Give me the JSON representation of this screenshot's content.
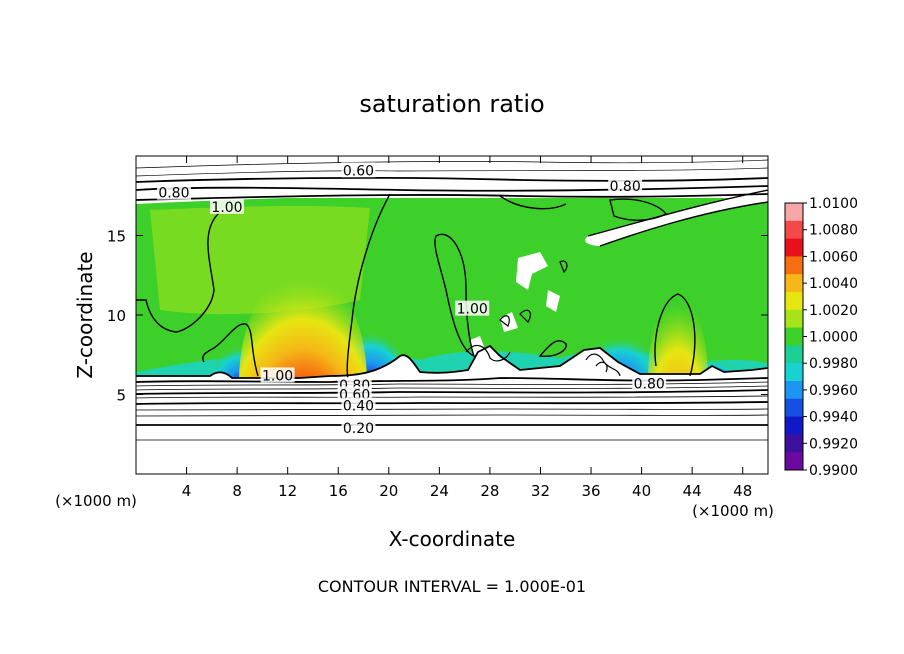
{
  "chart_data": {
    "type": "heatmap",
    "title": "saturation ratio",
    "xlabel": "X-coordinate",
    "ylabel": "Z-coordinate",
    "x_unit_left": "(×1000 m)",
    "x_unit_right": "(×1000 m)",
    "footer": "CONTOUR INTERVAL = 1.000E-01",
    "xlim": [
      0,
      50
    ],
    "ylim": [
      0,
      20
    ],
    "xticks": [
      4,
      8,
      12,
      16,
      20,
      24,
      28,
      32,
      36,
      40,
      44,
      48
    ],
    "yticks": [
      5,
      10,
      15
    ],
    "colorbar": {
      "levels": [
        "1.0100",
        "1.0080",
        "1.0060",
        "1.0040",
        "1.0020",
        "1.0000",
        "0.9980",
        "0.9960",
        "0.9940",
        "0.9920",
        "0.9900"
      ],
      "colors": [
        "#f7a7a7",
        "#f24a4a",
        "#e8101a",
        "#f56e10",
        "#f5b818",
        "#e6e612",
        "#a6e31a",
        "#3ed02a",
        "#1ccf94",
        "#18d2d2",
        "#1c96f0",
        "#1650e0",
        "#1018c8",
        "#3c109c",
        "#6a0aa0"
      ]
    },
    "contour_labels": [
      {
        "text": "0.60",
        "x": 17.6,
        "z": 19.1
      },
      {
        "text": "0.80",
        "x": 3.0,
        "z": 17.7
      },
      {
        "text": "1.00",
        "x": 7.2,
        "z": 16.8
      },
      {
        "text": "0.80",
        "x": 38.7,
        "z": 18.1
      },
      {
        "text": "1.00",
        "x": 26.6,
        "z": 10.4
      },
      {
        "text": "1.00",
        "x": 11.2,
        "z": 6.2
      },
      {
        "text": "0.80",
        "x": 17.3,
        "z": 5.6
      },
      {
        "text": "0.60",
        "x": 17.3,
        "z": 5.0
      },
      {
        "text": "0.40",
        "x": 17.6,
        "z": 4.3
      },
      {
        "text": "0.20",
        "x": 17.6,
        "z": 2.9
      },
      {
        "text": "0.80",
        "x": 40.6,
        "z": 5.7
      }
    ]
  }
}
